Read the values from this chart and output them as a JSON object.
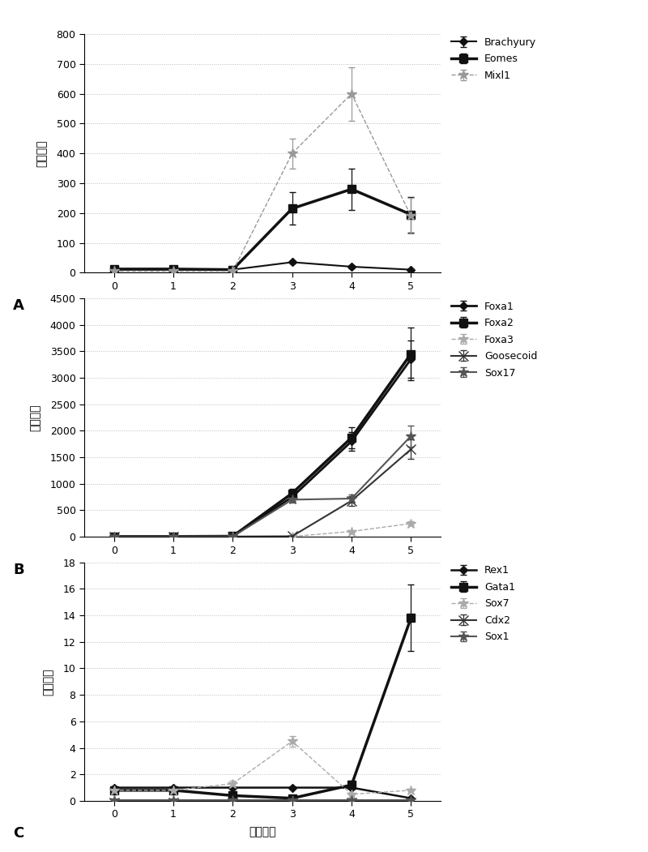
{
  "x": [
    0,
    1,
    2,
    3,
    4,
    5
  ],
  "xlabel": "培养天数",
  "ylabel": "变化倍数",
  "panel_A": {
    "label": "A",
    "ylim": [
      0,
      800
    ],
    "yticks": [
      0,
      100,
      200,
      300,
      400,
      500,
      600,
      700,
      800
    ],
    "series": {
      "Brachyury": {
        "y": [
          10,
          10,
          10,
          35,
          20,
          10
        ],
        "yerr": [
          2,
          2,
          2,
          5,
          5,
          3
        ],
        "color": "#111111",
        "marker": "D",
        "markersize": 5,
        "linewidth": 1.5,
        "linestyle": "-"
      },
      "Eomes": {
        "y": [
          12,
          12,
          10,
          215,
          280,
          195
        ],
        "yerr": [
          2,
          2,
          2,
          55,
          70,
          60
        ],
        "color": "#111111",
        "marker": "s",
        "markersize": 7,
        "linewidth": 2.5,
        "linestyle": "-"
      },
      "Mixl1": {
        "y": [
          5,
          5,
          5,
          400,
          600,
          190
        ],
        "yerr": [
          2,
          2,
          2,
          50,
          90,
          60
        ],
        "color": "#999999",
        "marker": "*",
        "markersize": 9,
        "linewidth": 1.0,
        "linestyle": "--"
      }
    }
  },
  "panel_B": {
    "label": "B",
    "ylim": [
      0,
      4500
    ],
    "yticks": [
      0,
      500,
      1000,
      1500,
      2000,
      2500,
      3000,
      3500,
      4000,
      4500
    ],
    "series": {
      "Foxa1": {
        "y": [
          5,
          5,
          10,
          750,
          1800,
          3350
        ],
        "yerr": [
          2,
          2,
          5,
          80,
          180,
          350
        ],
        "color": "#111111",
        "marker": "D",
        "markersize": 5,
        "linewidth": 2.0,
        "linestyle": "-"
      },
      "Foxa2": {
        "y": [
          5,
          5,
          10,
          820,
          1870,
          3450
        ],
        "yerr": [
          2,
          2,
          5,
          90,
          200,
          500
        ],
        "color": "#111111",
        "marker": "s",
        "markersize": 7,
        "linewidth": 2.5,
        "linestyle": "-"
      },
      "Foxa3": {
        "y": [
          5,
          5,
          5,
          5,
          100,
          250
        ],
        "yerr": [
          2,
          2,
          2,
          2,
          20,
          40
        ],
        "color": "#aaaaaa",
        "marker": "*",
        "markersize": 9,
        "linewidth": 1.0,
        "linestyle": "--"
      },
      "Goosecoid": {
        "y": [
          5,
          5,
          5,
          10,
          680,
          1650
        ],
        "yerr": [
          2,
          2,
          2,
          5,
          90,
          180
        ],
        "color": "#333333",
        "marker": "x",
        "markersize": 8,
        "linewidth": 1.5,
        "linestyle": "-"
      },
      "Sox17": {
        "y": [
          5,
          5,
          5,
          700,
          720,
          1900
        ],
        "yerr": [
          2,
          2,
          2,
          50,
          80,
          200
        ],
        "color": "#555555",
        "marker": "*",
        "markersize": 9,
        "linewidth": 1.5,
        "linestyle": "-"
      }
    }
  },
  "panel_C": {
    "label": "C",
    "ylim": [
      0,
      18
    ],
    "yticks": [
      0,
      2,
      4,
      6,
      8,
      10,
      12,
      14,
      16,
      18
    ],
    "series": {
      "Rex1": {
        "y": [
          1.0,
          1.0,
          1.0,
          1.0,
          1.0,
          0.2
        ],
        "yerr": [
          0.1,
          0.1,
          0.1,
          0.1,
          0.1,
          0.05
        ],
        "color": "#111111",
        "marker": "D",
        "markersize": 5,
        "linewidth": 1.8,
        "linestyle": "-"
      },
      "Gata1": {
        "y": [
          0.8,
          0.8,
          0.4,
          0.2,
          1.2,
          13.8
        ],
        "yerr": [
          0.1,
          0.1,
          0.1,
          0.1,
          0.3,
          2.5
        ],
        "color": "#111111",
        "marker": "s",
        "markersize": 7,
        "linewidth": 2.5,
        "linestyle": "-"
      },
      "Sox7": {
        "y": [
          0.8,
          0.8,
          1.3,
          4.5,
          0.5,
          0.8
        ],
        "yerr": [
          0.1,
          0.1,
          0.2,
          0.4,
          0.1,
          0.1
        ],
        "color": "#aaaaaa",
        "marker": "*",
        "markersize": 9,
        "linewidth": 1.0,
        "linestyle": "--"
      },
      "Cdx2": {
        "y": [
          -0.1,
          -0.1,
          -0.1,
          -0.1,
          -0.1,
          -0.1
        ],
        "yerr": [
          0.05,
          0.05,
          0.05,
          0.05,
          0.05,
          0.05
        ],
        "color": "#333333",
        "marker": "x",
        "markersize": 8,
        "linewidth": 1.5,
        "linestyle": "-"
      },
      "Sox1": {
        "y": [
          0.05,
          0.05,
          0.05,
          0.05,
          0.05,
          0.05
        ],
        "yerr": [
          0.02,
          0.02,
          0.02,
          0.02,
          0.02,
          0.02
        ],
        "color": "#555555",
        "marker": "*",
        "markersize": 9,
        "linewidth": 1.5,
        "linestyle": "-"
      }
    }
  },
  "background_color": "#ffffff",
  "grid_color": "#bbbbbb",
  "grid_linestyle": ":",
  "grid_linewidth": 0.7,
  "legend_fontsize": 9,
  "tick_fontsize": 9,
  "label_fontsize": 10,
  "panel_label_fontsize": 13
}
